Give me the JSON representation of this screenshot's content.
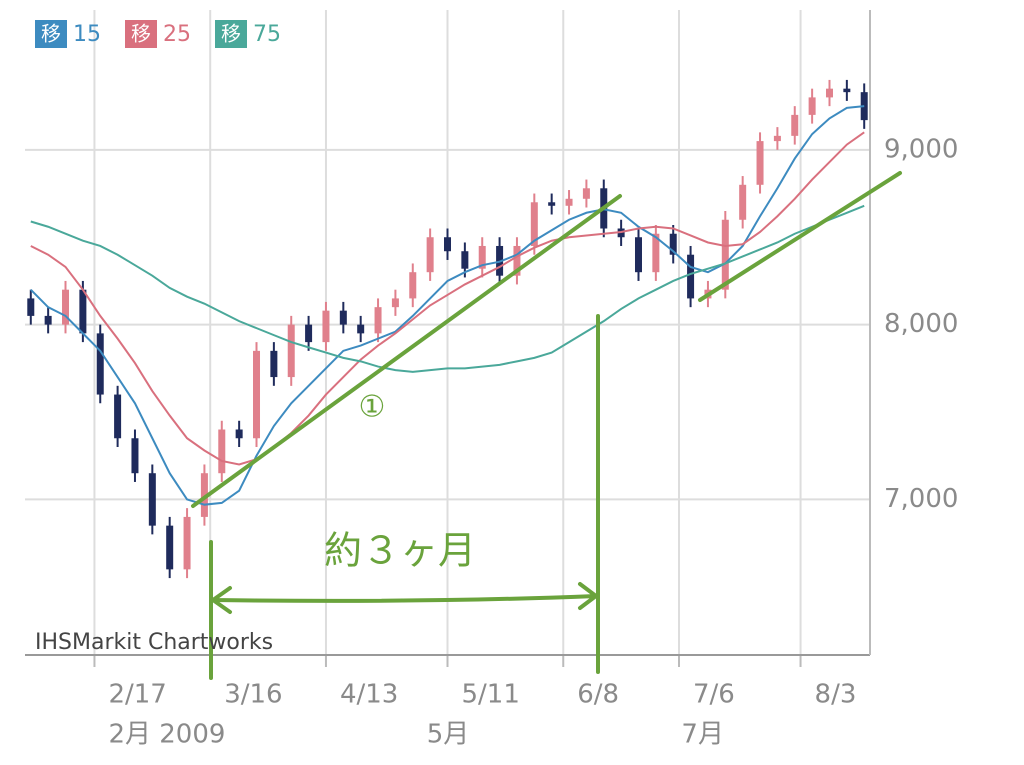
{
  "chart_data": {
    "type": "candlestick",
    "watermark": "IHSMarkit Chartworks",
    "annotations": [
      "①",
      "約３ヶ月"
    ],
    "legend_badge": "移",
    "x": [
      1,
      4,
      7,
      10,
      13,
      16,
      19,
      22,
      25,
      28,
      31,
      34,
      37,
      40,
      43,
      46,
      49,
      52,
      55,
      58,
      61,
      64,
      67,
      70,
      73,
      76,
      79,
      82,
      85,
      88,
      91,
      94,
      97,
      100,
      103,
      106,
      109,
      112,
      115,
      118,
      121,
      124,
      127,
      130,
      133,
      136,
      139,
      142,
      145
    ],
    "open": [
      8150,
      8050,
      8000,
      8200,
      7950,
      7600,
      7350,
      7150,
      6850,
      6600,
      6900,
      7150,
      7400,
      7350,
      7850,
      7700,
      8000,
      7900,
      8080,
      8000,
      7950,
      8100,
      8150,
      8300,
      8500,
      8420,
      8320,
      8450,
      8280,
      8450,
      8700,
      8680,
      8720,
      8780,
      8550,
      8500,
      8300,
      8520,
      8400,
      8150,
      8200,
      8600,
      8800,
      9050,
      9080,
      9200,
      9300,
      9350,
      9330
    ],
    "high": [
      8200,
      8100,
      8250,
      8250,
      8000,
      7650,
      7400,
      7200,
      6900,
      6950,
      7200,
      7450,
      7450,
      7900,
      7900,
      8050,
      8050,
      8130,
      8130,
      8050,
      8150,
      8200,
      8350,
      8550,
      8550,
      8470,
      8500,
      8500,
      8500,
      8750,
      8750,
      8770,
      8830,
      8830,
      8600,
      8550,
      8570,
      8570,
      8450,
      8250,
      8650,
      8850,
      9100,
      9130,
      9250,
      9350,
      9400,
      9400,
      9380
    ],
    "low": [
      8000,
      7950,
      7950,
      7900,
      7550,
      7300,
      7100,
      6800,
      6550,
      6550,
      6850,
      7100,
      7300,
      7300,
      7650,
      7650,
      7850,
      7850,
      7950,
      7900,
      7900,
      8050,
      8100,
      8250,
      8370,
      8270,
      8270,
      8230,
      8230,
      8400,
      8630,
      8630,
      8670,
      8500,
      8450,
      8250,
      8250,
      8350,
      8100,
      8100,
      8150,
      8550,
      8750,
      9000,
      9030,
      9150,
      9250,
      9280,
      9120
    ],
    "close": [
      8050,
      8000,
      8200,
      7950,
      7600,
      7350,
      7150,
      6850,
      6600,
      6900,
      7150,
      7400,
      7350,
      7850,
      7700,
      8000,
      7900,
      8080,
      8000,
      7950,
      8100,
      8150,
      8300,
      8500,
      8420,
      8320,
      8450,
      8280,
      8450,
      8700,
      8680,
      8720,
      8780,
      8550,
      8500,
      8300,
      8520,
      8400,
      8150,
      8200,
      8600,
      8800,
      9050,
      9080,
      9200,
      9300,
      9350,
      9330,
      9170
    ],
    "up_color": "#e0808c",
    "down_color": "#1f2b5c",
    "series": [
      {
        "name": "15",
        "color": "#3d8bc0",
        "values": [
          8200,
          8100,
          8050,
          7950,
          7850,
          7700,
          7550,
          7350,
          7150,
          7000,
          6970,
          6980,
          7050,
          7250,
          7420,
          7550,
          7650,
          7750,
          7850,
          7880,
          7920,
          7960,
          8050,
          8150,
          8250,
          8300,
          8340,
          8360,
          8400,
          8480,
          8540,
          8600,
          8640,
          8660,
          8640,
          8560,
          8500,
          8420,
          8330,
          8300,
          8350,
          8450,
          8620,
          8780,
          8950,
          9090,
          9180,
          9240,
          9250
        ]
      },
      {
        "name": "25",
        "color": "#d9707e",
        "values": [
          8450,
          8400,
          8330,
          8200,
          8050,
          7920,
          7780,
          7620,
          7480,
          7350,
          7280,
          7220,
          7200,
          7230,
          7300,
          7380,
          7480,
          7600,
          7700,
          7800,
          7880,
          7950,
          8030,
          8110,
          8170,
          8230,
          8280,
          8330,
          8390,
          8440,
          8480,
          8500,
          8510,
          8520,
          8530,
          8550,
          8560,
          8550,
          8510,
          8470,
          8450,
          8460,
          8530,
          8620,
          8720,
          8830,
          8930,
          9030,
          9100
        ]
      },
      {
        "name": "75",
        "color": "#4aa89a",
        "values": [
          8590,
          8560,
          8520,
          8480,
          8450,
          8400,
          8340,
          8280,
          8210,
          8160,
          8120,
          8070,
          8020,
          7980,
          7940,
          7900,
          7870,
          7840,
          7810,
          7790,
          7760,
          7740,
          7730,
          7740,
          7750,
          7750,
          7760,
          7770,
          7790,
          7810,
          7840,
          7900,
          7960,
          8020,
          8090,
          8150,
          8200,
          8250,
          8290,
          8320,
          8350,
          8390,
          8430,
          8470,
          8520,
          8560,
          8600,
          8640,
          8680
        ]
      }
    ],
    "xlim": [
      0,
      146
    ],
    "xticks": [
      {
        "value": 12,
        "label": "2/17"
      },
      {
        "value": 32,
        "label": "3/16"
      },
      {
        "value": 52,
        "label": "4/13"
      },
      {
        "value": 73,
        "label": "5/11"
      },
      {
        "value": 93,
        "label": "6/8"
      },
      {
        "value": 113,
        "label": "7/6"
      },
      {
        "value": 134,
        "label": "8/3"
      }
    ],
    "month_ticks": [
      {
        "value": 12,
        "label": "2月 2009"
      },
      {
        "value": 67,
        "label": "5月"
      },
      {
        "value": 111,
        "label": "7月"
      }
    ],
    "ylim": [
      6110,
      9800
    ],
    "yticks": [
      {
        "value": 7000,
        "label": "7,000"
      },
      {
        "value": 8000,
        "label": "8,000"
      },
      {
        "value": 9000,
        "label": "9,000"
      }
    ],
    "grid": true
  }
}
